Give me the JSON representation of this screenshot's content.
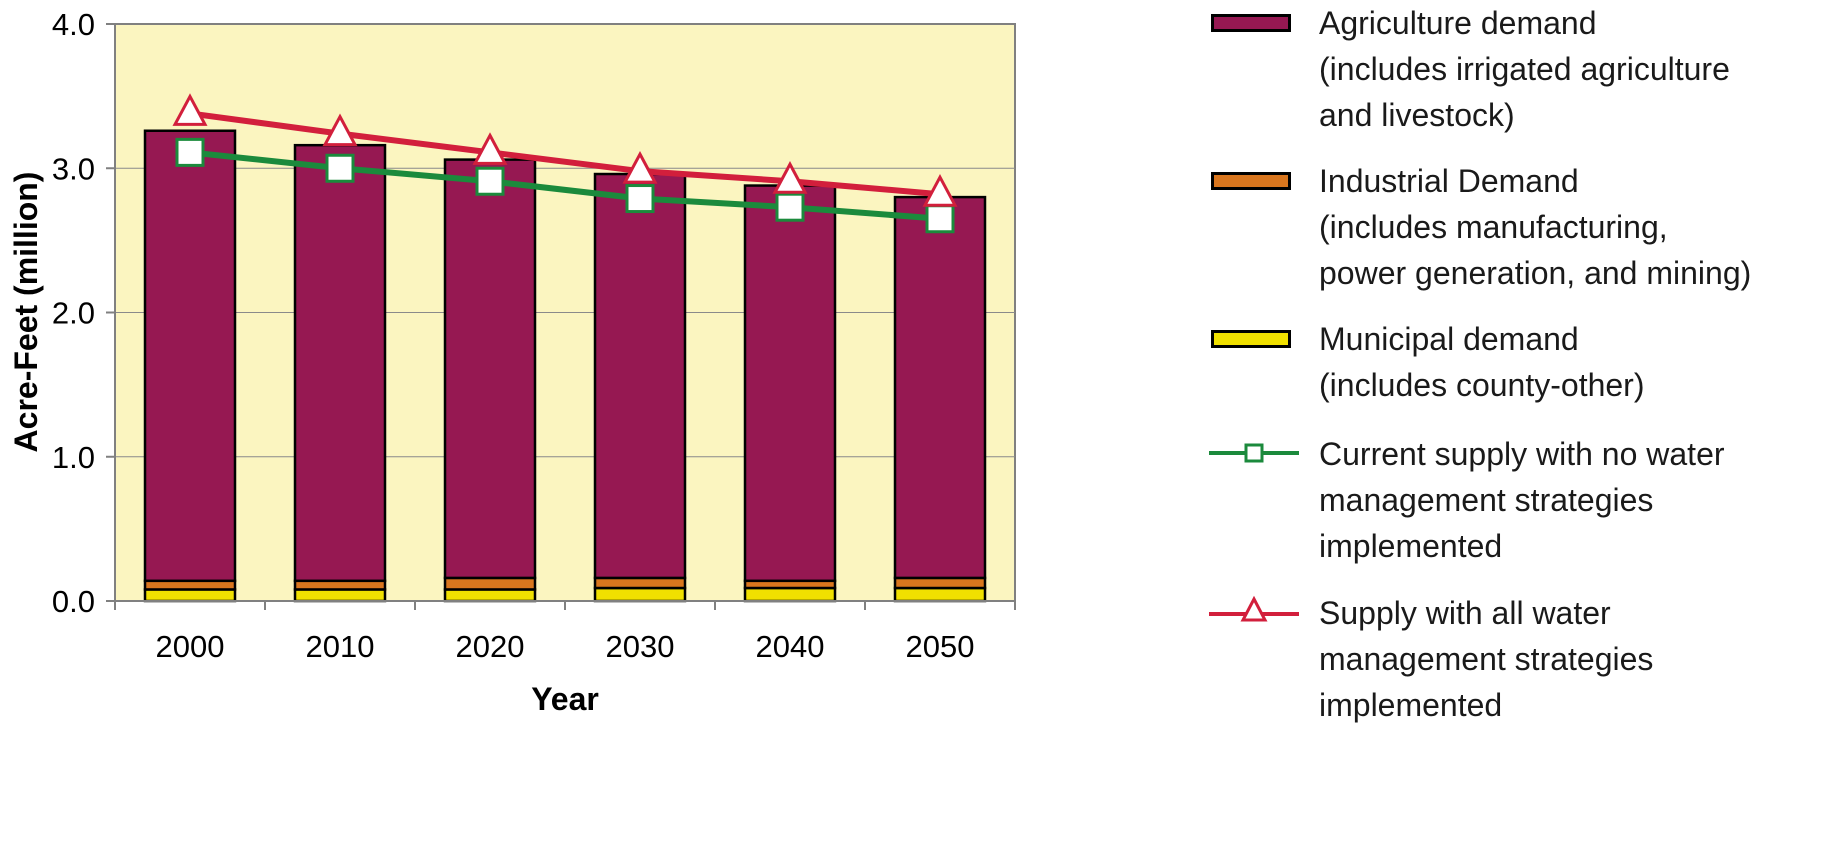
{
  "chart_data": {
    "type": "bar",
    "stacked": true,
    "categories": [
      "2000",
      "2010",
      "2020",
      "2030",
      "2040",
      "2050"
    ],
    "xlabel": "Year",
    "ylabel": "Acre-Feet (million)",
    "ylim": [
      0,
      4.0
    ],
    "yticks": [
      "0.0",
      "1.0",
      "2.0",
      "3.0",
      "4.0"
    ],
    "grid": true,
    "legend_position": "right",
    "series": [
      {
        "name": "Municipal demand (includes county-other)",
        "kind": "bar",
        "color": "#f0e000",
        "values": [
          0.08,
          0.08,
          0.08,
          0.09,
          0.09,
          0.09
        ]
      },
      {
        "name": "Industrial Demand (includes manufacturing, power generation, and mining)",
        "kind": "bar",
        "color": "#d9761e",
        "values": [
          0.06,
          0.06,
          0.08,
          0.07,
          0.05,
          0.07
        ]
      },
      {
        "name": "Agriculture demand (includes irrigated agriculture and livestock)",
        "kind": "bar",
        "color": "#961852",
        "values": [
          3.12,
          3.02,
          2.9,
          2.8,
          2.74,
          2.64
        ]
      },
      {
        "name": "Current supply with no water management strategies implemented",
        "kind": "line",
        "marker": "square",
        "color": "#1b8a3c",
        "values": [
          3.11,
          3.0,
          2.91,
          2.79,
          2.73,
          2.65
        ]
      },
      {
        "name": "Supply with all water management strategies implemented",
        "kind": "line",
        "marker": "triangle",
        "color": "#d21f3c",
        "values": [
          3.38,
          3.24,
          3.11,
          2.98,
          2.91,
          2.82
        ]
      }
    ]
  },
  "legend": {
    "agriculture": [
      "Agriculture demand",
      "(includes irrigated agriculture",
      "and livestock)"
    ],
    "industrial": [
      "Industrial Demand",
      "(includes manufacturing,",
      "power generation, and mining)"
    ],
    "municipal": [
      "Municipal demand",
      "(includes county-other)"
    ],
    "current_supply": [
      "Current supply with no water",
      "management strategies",
      "implemented"
    ],
    "all_strategies": [
      "Supply with all water",
      "management strategies",
      "implemented"
    ]
  },
  "colors": {
    "plot_background": "#fbf5c0",
    "agriculture": "#961852",
    "industrial": "#d9761e",
    "municipal": "#f0e000",
    "current_supply": "#1b8a3c",
    "all_strategies": "#d21f3c"
  }
}
